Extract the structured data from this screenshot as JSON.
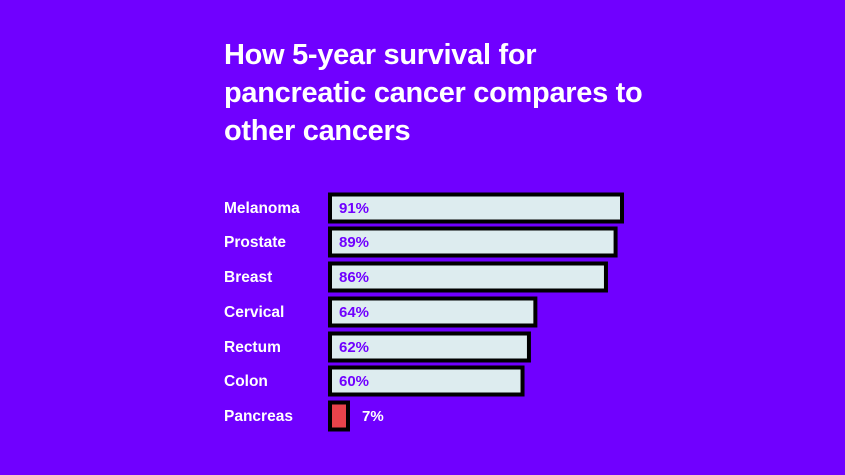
{
  "colors": {
    "background": "#7000FF",
    "bar_fill": "#DDECEF",
    "bar_highlight": "#E8434B",
    "bar_outline": "#000000",
    "value_text": "#7000FF",
    "label_text": "#FFFFFF"
  },
  "chart_data": {
    "type": "bar",
    "orientation": "horizontal",
    "title": "How 5-year survival for pancreatic cancer compares to other cancers",
    "categories": [
      "Melanoma",
      "Prostate",
      "Breast",
      "Cervical",
      "Rectum",
      "Colon",
      "Pancreas"
    ],
    "values": [
      91,
      89,
      86,
      64,
      62,
      60,
      7
    ],
    "value_labels": [
      "91%",
      "89%",
      "86%",
      "64%",
      "62%",
      "60%",
      "7%"
    ],
    "highlighted_category": "Pancreas",
    "xlim": [
      0,
      91
    ],
    "grid": false
  }
}
